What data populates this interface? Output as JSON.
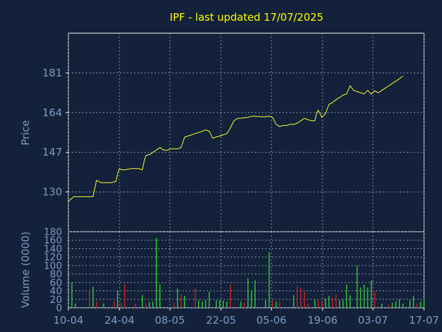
{
  "chart_data": [
    {
      "type": "line",
      "title": "IPF - last updated 17/07/2025",
      "ylabel": "Price",
      "xlabel": "",
      "ylim": [
        113,
        198
      ],
      "y_ticks": [
        "130",
        "147",
        "164",
        "181"
      ],
      "x_ticks": [
        "10-04",
        "24-04",
        "08-05",
        "22-05",
        "05-06",
        "19-06",
        "03-07",
        "17-07"
      ],
      "grid": true,
      "series": [
        {
          "color": "#ffff33",
          "points": [
            [
              0,
              126
            ],
            [
              1.5,
              128
            ],
            [
              3,
              128
            ],
            [
              5,
              128
            ],
            [
              7,
              128
            ],
            [
              7.5,
              131.5
            ],
            [
              8,
              135
            ],
            [
              9.3,
              134
            ],
            [
              10.6,
              134
            ],
            [
              12,
              134
            ],
            [
              13,
              134.4
            ],
            [
              13.5,
              134.5
            ],
            [
              14,
              138
            ],
            [
              14.5,
              140
            ],
            [
              15.2,
              139.5
            ],
            [
              16,
              139.5
            ],
            [
              18,
              140
            ],
            [
              20,
              140
            ],
            [
              21,
              139.5
            ],
            [
              21.5,
              143
            ],
            [
              22,
              145.6
            ],
            [
              23,
              146
            ],
            [
              24,
              147
            ],
            [
              25,
              148
            ],
            [
              26,
              149
            ],
            [
              27,
              148
            ],
            [
              28,
              147.8
            ],
            [
              29,
              148.5
            ],
            [
              31,
              148.5
            ],
            [
              32,
              149
            ],
            [
              33,
              153.5
            ],
            [
              34,
              154
            ],
            [
              35,
              154.5
            ],
            [
              36,
              155
            ],
            [
              37,
              155.5
            ],
            [
              38,
              156
            ],
            [
              39,
              156.6
            ],
            [
              40,
              156
            ],
            [
              41,
              153
            ],
            [
              42,
              153.6
            ],
            [
              43,
              154
            ],
            [
              44,
              154.5
            ],
            [
              45,
              155
            ],
            [
              46,
              157.5
            ],
            [
              47,
              160.5
            ],
            [
              48,
              161.5
            ],
            [
              49,
              161.6
            ],
            [
              50,
              161.8
            ],
            [
              51,
              162
            ],
            [
              52,
              162.4
            ],
            [
              53,
              162.5
            ],
            [
              54,
              162.3
            ],
            [
              55,
              162.2
            ],
            [
              56,
              162.2
            ],
            [
              57,
              162.5
            ],
            [
              58,
              162
            ],
            [
              59,
              159
            ],
            [
              60,
              158
            ],
            [
              61,
              158.5
            ],
            [
              62,
              158.5
            ],
            [
              63,
              159
            ],
            [
              64,
              159
            ],
            [
              65,
              159.5
            ],
            [
              66,
              160.5
            ],
            [
              67,
              161.5
            ],
            [
              68,
              161
            ],
            [
              69,
              160.5
            ],
            [
              70,
              160.5
            ],
            [
              70.5,
              164
            ],
            [
              71,
              165
            ],
            [
              72,
              162
            ],
            [
              73,
              163.5
            ],
            [
              74,
              167.5
            ],
            [
              75,
              168.3
            ],
            [
              76,
              169.5
            ],
            [
              77,
              170.5
            ],
            [
              78,
              171.5
            ],
            [
              79,
              172
            ],
            [
              80,
              175.5
            ],
            [
              81,
              173.5
            ],
            [
              82,
              173
            ],
            [
              83,
              172.5
            ],
            [
              84,
              172
            ],
            [
              85,
              173.5
            ],
            [
              86,
              172
            ],
            [
              87,
              173.3
            ],
            [
              88,
              172.5
            ],
            [
              89,
              173.5
            ],
            [
              90,
              174.5
            ],
            [
              91,
              175.5
            ],
            [
              92,
              176.5
            ],
            [
              93,
              177.5
            ],
            [
              94,
              178.5
            ],
            [
              95,
              179.6
            ]
          ]
        }
      ]
    },
    {
      "type": "bar",
      "title": "",
      "ylabel": "Volume (0000)",
      "xlabel": "",
      "ylim": [
        0,
        180
      ],
      "y_ticks": [
        "0",
        "20",
        "40",
        "60",
        "80",
        "100",
        "120",
        "140",
        "160",
        "180"
      ],
      "x_ticks": [
        "10-04",
        "24-04",
        "08-05",
        "22-05",
        "05-06",
        "19-06",
        "03-07",
        "17-07"
      ],
      "grid": true,
      "colors": {
        "up": "#33dd33",
        "down": "#dd2222"
      },
      "bars": [
        {
          "x": 1,
          "value": 60,
          "dir": "up"
        },
        {
          "x": 2,
          "value": 10,
          "dir": "up"
        },
        {
          "x": 6,
          "value": 38,
          "dir": "down"
        },
        {
          "x": 7,
          "value": 49,
          "dir": "up"
        },
        {
          "x": 8,
          "value": 15,
          "dir": "down"
        },
        {
          "x": 10,
          "value": 10,
          "dir": "up"
        },
        {
          "x": 13,
          "value": 16,
          "dir": "down"
        },
        {
          "x": 14,
          "value": 40,
          "dir": "up"
        },
        {
          "x": 15,
          "value": 12,
          "dir": "down"
        },
        {
          "x": 16,
          "value": 56,
          "dir": "down"
        },
        {
          "x": 19,
          "value": 10,
          "dir": "down"
        },
        {
          "x": 21,
          "value": 30,
          "dir": "up"
        },
        {
          "x": 22,
          "value": 12,
          "dir": "down"
        },
        {
          "x": 23,
          "value": 14,
          "dir": "up"
        },
        {
          "x": 24,
          "value": 15,
          "dir": "up"
        },
        {
          "x": 25,
          "value": 165,
          "dir": "up"
        },
        {
          "x": 26,
          "value": 55,
          "dir": "up"
        },
        {
          "x": 30,
          "value": 12,
          "dir": "down"
        },
        {
          "x": 31,
          "value": 46,
          "dir": "up"
        },
        {
          "x": 32,
          "value": 32,
          "dir": "down"
        },
        {
          "x": 33,
          "value": 28,
          "dir": "up"
        },
        {
          "x": 36,
          "value": 46,
          "dir": "down"
        },
        {
          "x": 37,
          "value": 18,
          "dir": "up"
        },
        {
          "x": 38,
          "value": 15,
          "dir": "up"
        },
        {
          "x": 39,
          "value": 18,
          "dir": "up"
        },
        {
          "x": 40,
          "value": 38,
          "dir": "up"
        },
        {
          "x": 42,
          "value": 18,
          "dir": "up"
        },
        {
          "x": 43,
          "value": 18,
          "dir": "up"
        },
        {
          "x": 44,
          "value": 17,
          "dir": "up"
        },
        {
          "x": 45,
          "value": 15,
          "dir": "up"
        },
        {
          "x": 46,
          "value": 55,
          "dir": "down"
        },
        {
          "x": 49,
          "value": 15,
          "dir": "up"
        },
        {
          "x": 50,
          "value": 12,
          "dir": "down"
        },
        {
          "x": 51,
          "value": 70,
          "dir": "up"
        },
        {
          "x": 52,
          "value": 40,
          "dir": "up"
        },
        {
          "x": 53,
          "value": 65,
          "dir": "up"
        },
        {
          "x": 56,
          "value": 18,
          "dir": "up"
        },
        {
          "x": 57,
          "value": 132,
          "dir": "up"
        },
        {
          "x": 58,
          "value": 18,
          "dir": "down"
        },
        {
          "x": 59,
          "value": 15,
          "dir": "up"
        },
        {
          "x": 60,
          "value": 15,
          "dir": "down"
        },
        {
          "x": 64,
          "value": 30,
          "dir": "up"
        },
        {
          "x": 65,
          "value": 52,
          "dir": "down"
        },
        {
          "x": 66,
          "value": 47,
          "dir": "down"
        },
        {
          "x": 67,
          "value": 38,
          "dir": "down"
        },
        {
          "x": 68,
          "value": 10,
          "dir": "down"
        },
        {
          "x": 70,
          "value": 20,
          "dir": "up"
        },
        {
          "x": 71,
          "value": 18,
          "dir": "down"
        },
        {
          "x": 72,
          "value": 15,
          "dir": "down"
        },
        {
          "x": 73,
          "value": 22,
          "dir": "up"
        },
        {
          "x": 74,
          "value": 28,
          "dir": "up"
        },
        {
          "x": 75,
          "value": 24,
          "dir": "down"
        },
        {
          "x": 76,
          "value": 32,
          "dir": "down"
        },
        {
          "x": 77,
          "value": 18,
          "dir": "up"
        },
        {
          "x": 78,
          "value": 20,
          "dir": "up"
        },
        {
          "x": 79,
          "value": 55,
          "dir": "up"
        },
        {
          "x": 80,
          "value": 30,
          "dir": "up"
        },
        {
          "x": 82,
          "value": 100,
          "dir": "up"
        },
        {
          "x": 83,
          "value": 48,
          "dir": "up"
        },
        {
          "x": 84,
          "value": 55,
          "dir": "up"
        },
        {
          "x": 85,
          "value": 48,
          "dir": "up"
        },
        {
          "x": 86,
          "value": 65,
          "dir": "up"
        },
        {
          "x": 87,
          "value": 38,
          "dir": "down"
        },
        {
          "x": 89,
          "value": 10,
          "dir": "up"
        },
        {
          "x": 91,
          "value": 8,
          "dir": "down"
        },
        {
          "x": 92,
          "value": 12,
          "dir": "up"
        },
        {
          "x": 93,
          "value": 15,
          "dir": "up"
        },
        {
          "x": 94,
          "value": 20,
          "dir": "up"
        },
        {
          "x": 95,
          "value": 10,
          "dir": "up"
        },
        {
          "x": 97,
          "value": 18,
          "dir": "up"
        },
        {
          "x": 98,
          "value": 28,
          "dir": "up"
        },
        {
          "x": 99,
          "value": 10,
          "dir": "down"
        },
        {
          "x": 100,
          "value": 15,
          "dir": "up"
        },
        {
          "x": 101,
          "value": 22,
          "dir": "up"
        }
      ]
    }
  ],
  "colors": {
    "background": "#13213a",
    "text": "#7d9cc8",
    "title": "#ffff00",
    "axis": "#ffffff",
    "grid": "#8a9ab0"
  }
}
